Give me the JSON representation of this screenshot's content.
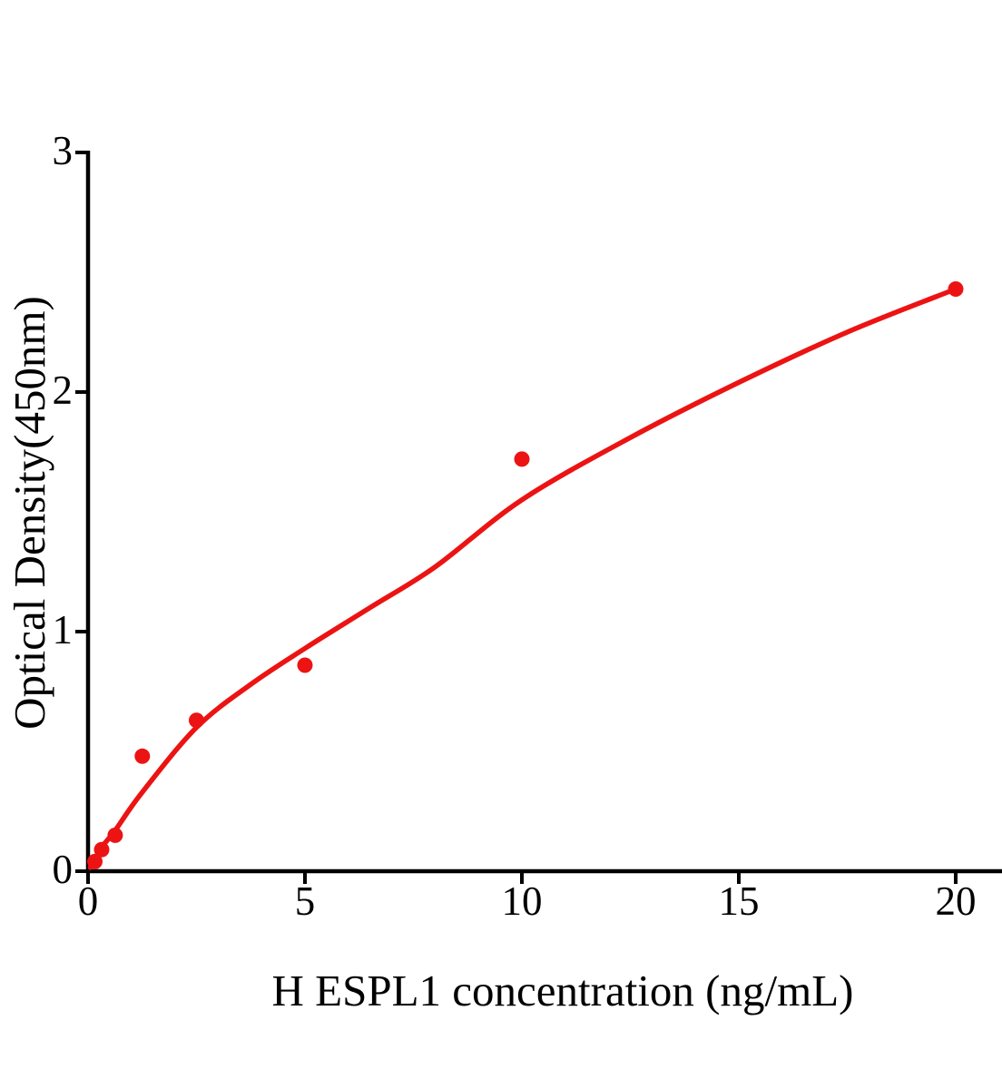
{
  "chart_data": {
    "type": "scatter",
    "title": "",
    "xlabel": "H ESPL1 concentration (ng/mL)",
    "ylabel": "Optical Density(450nm)",
    "xlim": [
      0,
      20
    ],
    "ylim": [
      0,
      3
    ],
    "x_ticks": [
      0,
      5,
      10,
      15,
      20
    ],
    "x_tick_labels": [
      "0",
      "5",
      "10",
      "15",
      "20"
    ],
    "y_ticks": [
      0,
      1,
      2,
      3
    ],
    "y_tick_labels": [
      "0",
      "1",
      "2",
      "3"
    ],
    "grid": false,
    "legend": "none",
    "series": [
      {
        "name": "standard-points",
        "type": "scatter",
        "marker": "circle",
        "color": "#EC1313",
        "x": [
          0.156,
          0.313,
          0.625,
          1.25,
          2.5,
          5,
          10,
          20
        ],
        "y": [
          0.04,
          0.09,
          0.15,
          0.48,
          0.63,
          0.86,
          1.72,
          2.43
        ]
      },
      {
        "name": "fitted-curve",
        "type": "line",
        "color": "#EC1313",
        "x": [
          0.05,
          0.156,
          0.313,
          0.625,
          1.25,
          2.5,
          3.75,
          5,
          6.5,
          8,
          10,
          12.5,
          15,
          17.5,
          20
        ],
        "y": [
          0.015,
          0.05,
          0.1,
          0.17,
          0.33,
          0.6,
          0.78,
          0.93,
          1.1,
          1.27,
          1.55,
          1.81,
          2.04,
          2.25,
          2.43
        ]
      }
    ]
  },
  "colors": {
    "accent_red": "#EC1313",
    "axis": "#000000",
    "background": "#FFFFFF"
  }
}
